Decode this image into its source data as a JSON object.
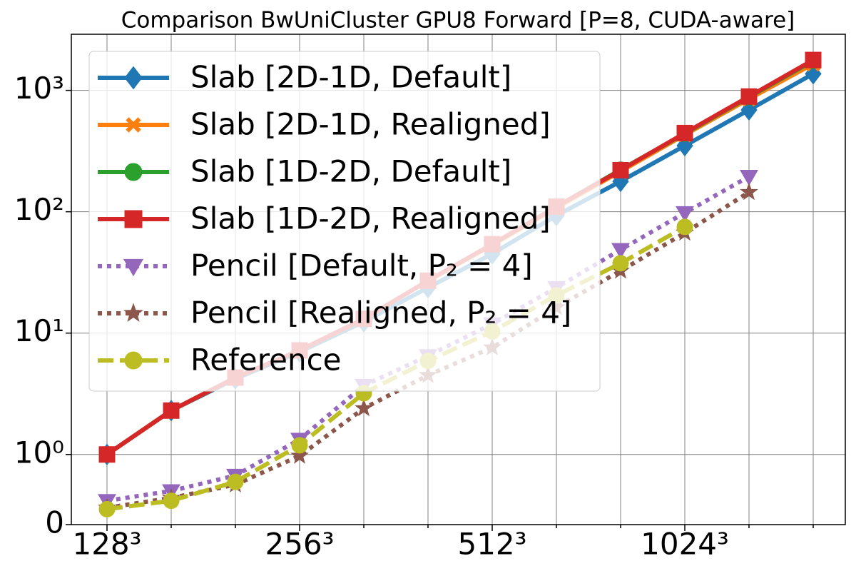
{
  "chart_data": {
    "type": "line",
    "title": "Comparison BwUniCluster GPU8 Forward [P=8, CUDA-aware]",
    "categories": [
      "128³",
      null,
      null,
      "256³",
      null,
      null,
      "512³",
      null,
      null,
      "1024³",
      null,
      null
    ],
    "yscale": "symlog",
    "linthresh": 1,
    "linscale": 0.52,
    "ylim": [
      0,
      2900
    ],
    "yticks": [
      0,
      {
        "value": 1,
        "label": "10⁰"
      },
      {
        "value": 10,
        "label": "10¹"
      },
      {
        "value": 100,
        "label": "10²"
      },
      {
        "value": 1000,
        "label": "10³"
      }
    ],
    "grid": true,
    "legend": "upper left",
    "series": [
      {
        "name": "Slab [2D-1D, Default]",
        "color": "#1f77b4",
        "marker": "diamond",
        "linestyle": "solid",
        "values": [
          1.0,
          2.3,
          4.2,
          7.0,
          12.4,
          23.7,
          45,
          93,
          178,
          350,
          690,
          1370
        ]
      },
      {
        "name": "Slab [2D-1D, Realigned]",
        "color": "#ff7f0e",
        "marker": "x",
        "linestyle": "solid",
        "values": [
          1.0,
          2.3,
          4.3,
          7.2,
          13,
          27,
          53,
          108,
          215,
          430,
          850,
          1650
        ]
      },
      {
        "name": "Slab [1D-2D, Default]",
        "color": "#2ca02c",
        "marker": "circle",
        "linestyle": "solid",
        "values": [
          1.0,
          2.3,
          4.3,
          7.2,
          13.1,
          27,
          54,
          110,
          222,
          440,
          880,
          1750
        ]
      },
      {
        "name": "Slab [1D-2D, Realigned]",
        "color": "#d62728",
        "marker": "square",
        "linestyle": "solid",
        "values": [
          1.0,
          2.3,
          4.3,
          7.2,
          13.1,
          27,
          54,
          110,
          220,
          445,
          890,
          1780
        ]
      },
      {
        "name": "Pencil [Default, P₂ = 4]",
        "color": "#9467bd",
        "marker": "triangle-down",
        "linestyle": "dotted",
        "values": [
          0.34,
          0.48,
          0.7,
          1.33,
          3.7,
          6.5,
          11.9,
          23.7,
          48.7,
          98,
          195,
          null
        ]
      },
      {
        "name": "Pencil [Realigned, P₂ = 4]",
        "color": "#8c564b",
        "marker": "star",
        "linestyle": "dotted",
        "values": [
          0.24,
          0.38,
          0.57,
          0.98,
          2.4,
          4.5,
          7.6,
          16.3,
          32.6,
          67,
          145,
          null
        ]
      },
      {
        "name": "Reference",
        "color": "#bcbd22",
        "marker": "circle",
        "linestyle": "dashed",
        "values": [
          0.22,
          0.34,
          0.61,
          1.19,
          3.2,
          5.9,
          10.3,
          20.5,
          37.6,
          75,
          null,
          null
        ]
      }
    ]
  }
}
